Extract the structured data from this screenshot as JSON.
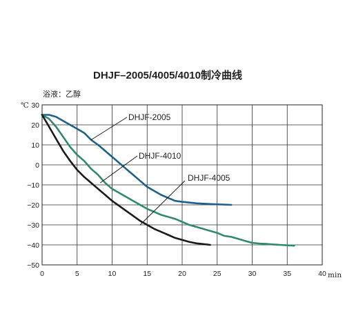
{
  "chart_data": {
    "type": "line",
    "title": "DHJF–2005/4005/4010制冷曲线",
    "subtitle": "浴液：乙醇",
    "y_unit": "℃",
    "x_unit": "min",
    "xlim": [
      0,
      40
    ],
    "ylim": [
      -50,
      30
    ],
    "x_ticks": [
      0,
      5,
      10,
      15,
      20,
      25,
      30,
      35,
      40
    ],
    "y_ticks": [
      30,
      20,
      10,
      0,
      -10,
      -20,
      -30,
      -40,
      -50
    ],
    "grid": true,
    "series": [
      {
        "name": "DHJF-2005",
        "color": "#1f5f8b",
        "points": [
          [
            0,
            25
          ],
          [
            1,
            25
          ],
          [
            2,
            24
          ],
          [
            3,
            22
          ],
          [
            4,
            20
          ],
          [
            5,
            18
          ],
          [
            6,
            16
          ],
          [
            7,
            12.5
          ],
          [
            8,
            10
          ],
          [
            9,
            7
          ],
          [
            10,
            4
          ],
          [
            11,
            1
          ],
          [
            12,
            -2
          ],
          [
            13,
            -5
          ],
          [
            14,
            -8
          ],
          [
            15,
            -11
          ],
          [
            16,
            -13
          ],
          [
            17,
            -15
          ],
          [
            18,
            -16.5
          ],
          [
            19,
            -18
          ],
          [
            20,
            -18.5
          ],
          [
            22,
            -19.2
          ],
          [
            24,
            -19.6
          ],
          [
            27,
            -20
          ]
        ]
      },
      {
        "name": "DHJF-4010",
        "color": "#2e8a6b",
        "points": [
          [
            0,
            25
          ],
          [
            1,
            23
          ],
          [
            2,
            19
          ],
          [
            3,
            14
          ],
          [
            4,
            9
          ],
          [
            5,
            5
          ],
          [
            6,
            2
          ],
          [
            7,
            -2
          ],
          [
            8,
            -5
          ],
          [
            9,
            -9
          ],
          [
            10,
            -12
          ],
          [
            11,
            -14
          ],
          [
            12,
            -16
          ],
          [
            13,
            -18
          ],
          [
            14,
            -20
          ],
          [
            15,
            -22
          ],
          [
            16,
            -23.5
          ],
          [
            17,
            -25
          ],
          [
            18,
            -26
          ],
          [
            19,
            -27
          ],
          [
            20,
            -28.5
          ],
          [
            21,
            -30
          ],
          [
            22,
            -31
          ],
          [
            23,
            -32
          ],
          [
            24,
            -33
          ],
          [
            25,
            -34
          ],
          [
            26,
            -35.5
          ],
          [
            27,
            -36
          ],
          [
            28,
            -37
          ],
          [
            29,
            -38
          ],
          [
            30,
            -39
          ],
          [
            31,
            -39.3
          ],
          [
            32,
            -39.5
          ],
          [
            33,
            -39.8
          ],
          [
            34,
            -40
          ],
          [
            35,
            -40.2
          ],
          [
            36,
            -40.4
          ]
        ]
      },
      {
        "name": "DHJF-4005",
        "color": "#1a1a1a",
        "points": [
          [
            0,
            25
          ],
          [
            1,
            19
          ],
          [
            2,
            13
          ],
          [
            3,
            7
          ],
          [
            4,
            2
          ],
          [
            5,
            -2.5
          ],
          [
            6,
            -6
          ],
          [
            7,
            -9
          ],
          [
            8,
            -12
          ],
          [
            9,
            -15
          ],
          [
            10,
            -18
          ],
          [
            11,
            -20.5
          ],
          [
            12,
            -23
          ],
          [
            13,
            -25.5
          ],
          [
            14,
            -28
          ],
          [
            15,
            -30
          ],
          [
            16,
            -32
          ],
          [
            17,
            -33.5
          ],
          [
            18,
            -35
          ],
          [
            19,
            -36.5
          ],
          [
            20,
            -37.5
          ],
          [
            21,
            -38.5
          ],
          [
            22,
            -39.2
          ],
          [
            23,
            -39.6
          ],
          [
            24,
            -40
          ]
        ]
      }
    ],
    "annotations": [
      {
        "text": "DHJF-2005",
        "series": "DHJF-2005",
        "point": [
          7,
          12.5
        ]
      },
      {
        "text": "DHJF-4010",
        "series": "DHJF-4010",
        "point": [
          8.3,
          -9
        ]
      },
      {
        "text": "DHJF-4005",
        "series": "DHJF-4005",
        "point": [
          14,
          -30
        ]
      }
    ]
  }
}
